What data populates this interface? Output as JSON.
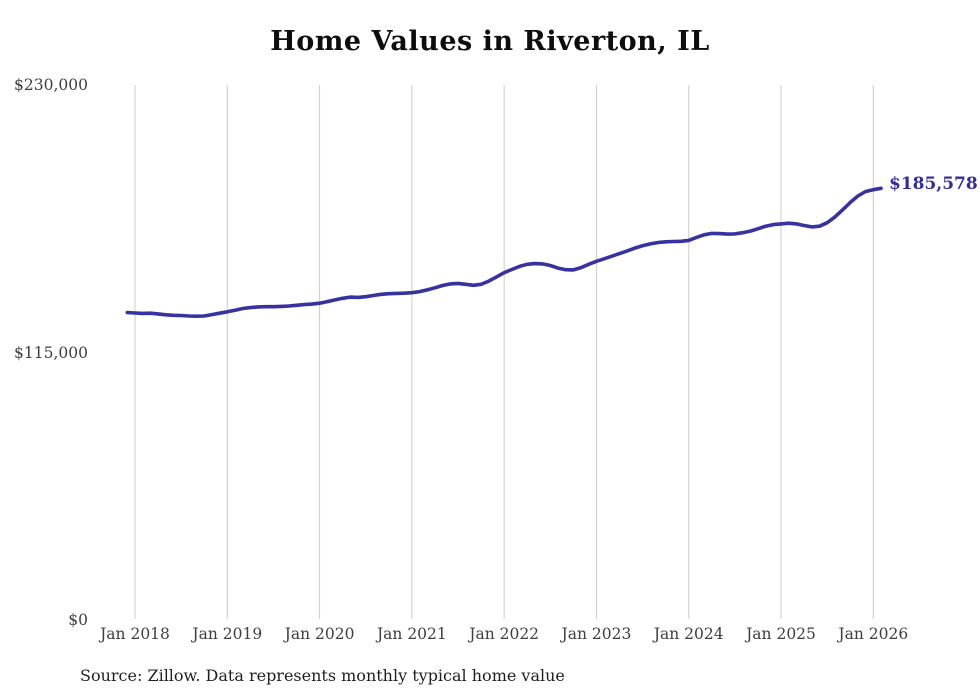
{
  "title": "Home Values in Riverton, IL",
  "source_note": "Source: Zillow. Data represents monthly typical home value",
  "colors": {
    "line": "#37329f",
    "grid": "#cccccc",
    "axis_text": "#3e3e3e",
    "title_text": "#0d0d0d",
    "end_label_text": "#322d9b"
  },
  "chart_data": {
    "type": "line",
    "title": "Home Values in Riverton, IL",
    "xlabel": "",
    "ylabel": "",
    "ylim": [
      0,
      230000
    ],
    "y_ticks": [
      0,
      115000,
      230000
    ],
    "y_tick_labels": [
      "$0",
      "$115,000",
      "$230,000"
    ],
    "x_tick_labels": [
      "Jan 2018",
      "Jan 2019",
      "Jan 2020",
      "Jan 2021",
      "Jan 2022",
      "Jan 2023",
      "Jan 2024",
      "Jan 2025",
      "Jan 2026"
    ],
    "grid": "vertical-only",
    "legend": "none",
    "annotations": [
      {
        "text": "$185,578",
        "position": "end-of-line"
      }
    ],
    "series": [
      {
        "name": "Monthly typical home value",
        "x_start": "2017-12",
        "x_interval": "month",
        "final_value": 185578,
        "values": [
          132200,
          132000,
          131800,
          131900,
          131600,
          131200,
          131000,
          130900,
          130700,
          130600,
          130700,
          131300,
          131900,
          132500,
          133200,
          133900,
          134300,
          134600,
          134700,
          134700,
          134800,
          135000,
          135300,
          135600,
          135800,
          136200,
          136900,
          137600,
          138300,
          138800,
          138700,
          139000,
          139500,
          140000,
          140300,
          140400,
          140500,
          140700,
          141200,
          141900,
          142800,
          143800,
          144500,
          144700,
          144300,
          143900,
          144300,
          145700,
          147500,
          149300,
          150700,
          152000,
          152900,
          153200,
          153100,
          152400,
          151300,
          150600,
          150500,
          151500,
          152900,
          154200,
          155300,
          156400,
          157500,
          158700,
          159900,
          160900,
          161700,
          162300,
          162600,
          162700,
          162800,
          163200,
          164500,
          165600,
          166200,
          166100,
          165900,
          166000,
          166500,
          167200,
          168200,
          169300,
          170000,
          170300,
          170600,
          170300,
          169600,
          169000,
          169300,
          170800,
          173200,
          176300,
          179500,
          182300,
          184200,
          185000,
          185578
        ]
      }
    ]
  }
}
